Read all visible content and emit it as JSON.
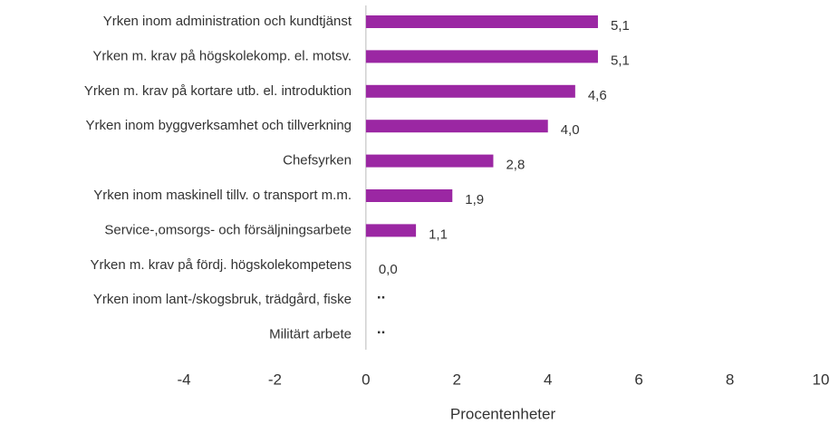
{
  "chart_data": {
    "type": "hbar",
    "categories": [
      "Yrken inom administration och kundtjänst",
      "Yrken m. krav på högskolekomp. el. motsv.",
      "Yrken m. krav på kortare utb. el. introduktion",
      "Yrken inom byggverksamhet och tillverkning",
      "Chefsyrken",
      "Yrken inom maskinell tillv. o transport m.m.",
      "Service-,omsorgs- och försäljningsarbete",
      "Yrken m. krav på fördj. högskolekompetens",
      "Yrken inom lant-/skogsbruk, trädgård, fiske",
      "Militärt arbete"
    ],
    "values": [
      5.1,
      5.1,
      4.6,
      4.0,
      2.8,
      1.9,
      1.1,
      0.0,
      null,
      null
    ],
    "value_labels": [
      "5,1",
      "5,1",
      "4,6",
      "4,0",
      "2,8",
      "1,9",
      "1,1",
      "0,0",
      "..",
      ".."
    ],
    "color": "#9b27a3",
    "xlabel": "Procentenheter",
    "xlim": [
      -4,
      10
    ],
    "xticks": [
      -4,
      -2,
      0,
      2,
      4,
      6,
      8,
      10
    ]
  }
}
